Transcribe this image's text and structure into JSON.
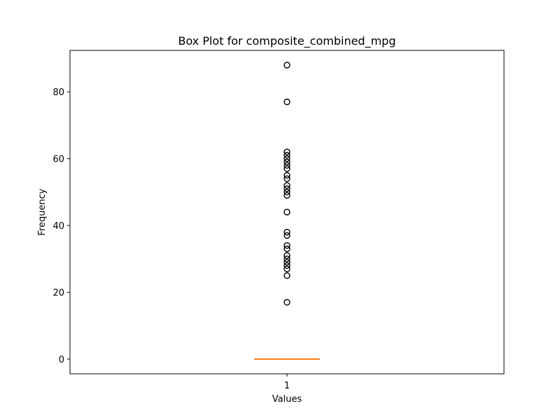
{
  "chart_data": {
    "type": "box",
    "title": "Box Plot for composite_combined_mpg",
    "xlabel": "Values",
    "ylabel": "Frequency",
    "categories": [
      "1"
    ],
    "yticks": [
      0,
      20,
      40,
      60,
      80
    ],
    "ylim": [
      -4.4,
      92.4
    ],
    "grid": false,
    "box": {
      "q1": 0,
      "median": 0,
      "q3": 0,
      "whisker_low": 0,
      "whisker_high": 0
    },
    "outliers": [
      17,
      25,
      27,
      28,
      29,
      30,
      31,
      33,
      34,
      37,
      38,
      44,
      49,
      50,
      51,
      52,
      54,
      55,
      57,
      58,
      59,
      60,
      61,
      62,
      77,
      88
    ],
    "colors": {
      "median": "#ff7f0e",
      "box": "#000000",
      "outlier": "#000000",
      "frame": "#000000"
    }
  }
}
